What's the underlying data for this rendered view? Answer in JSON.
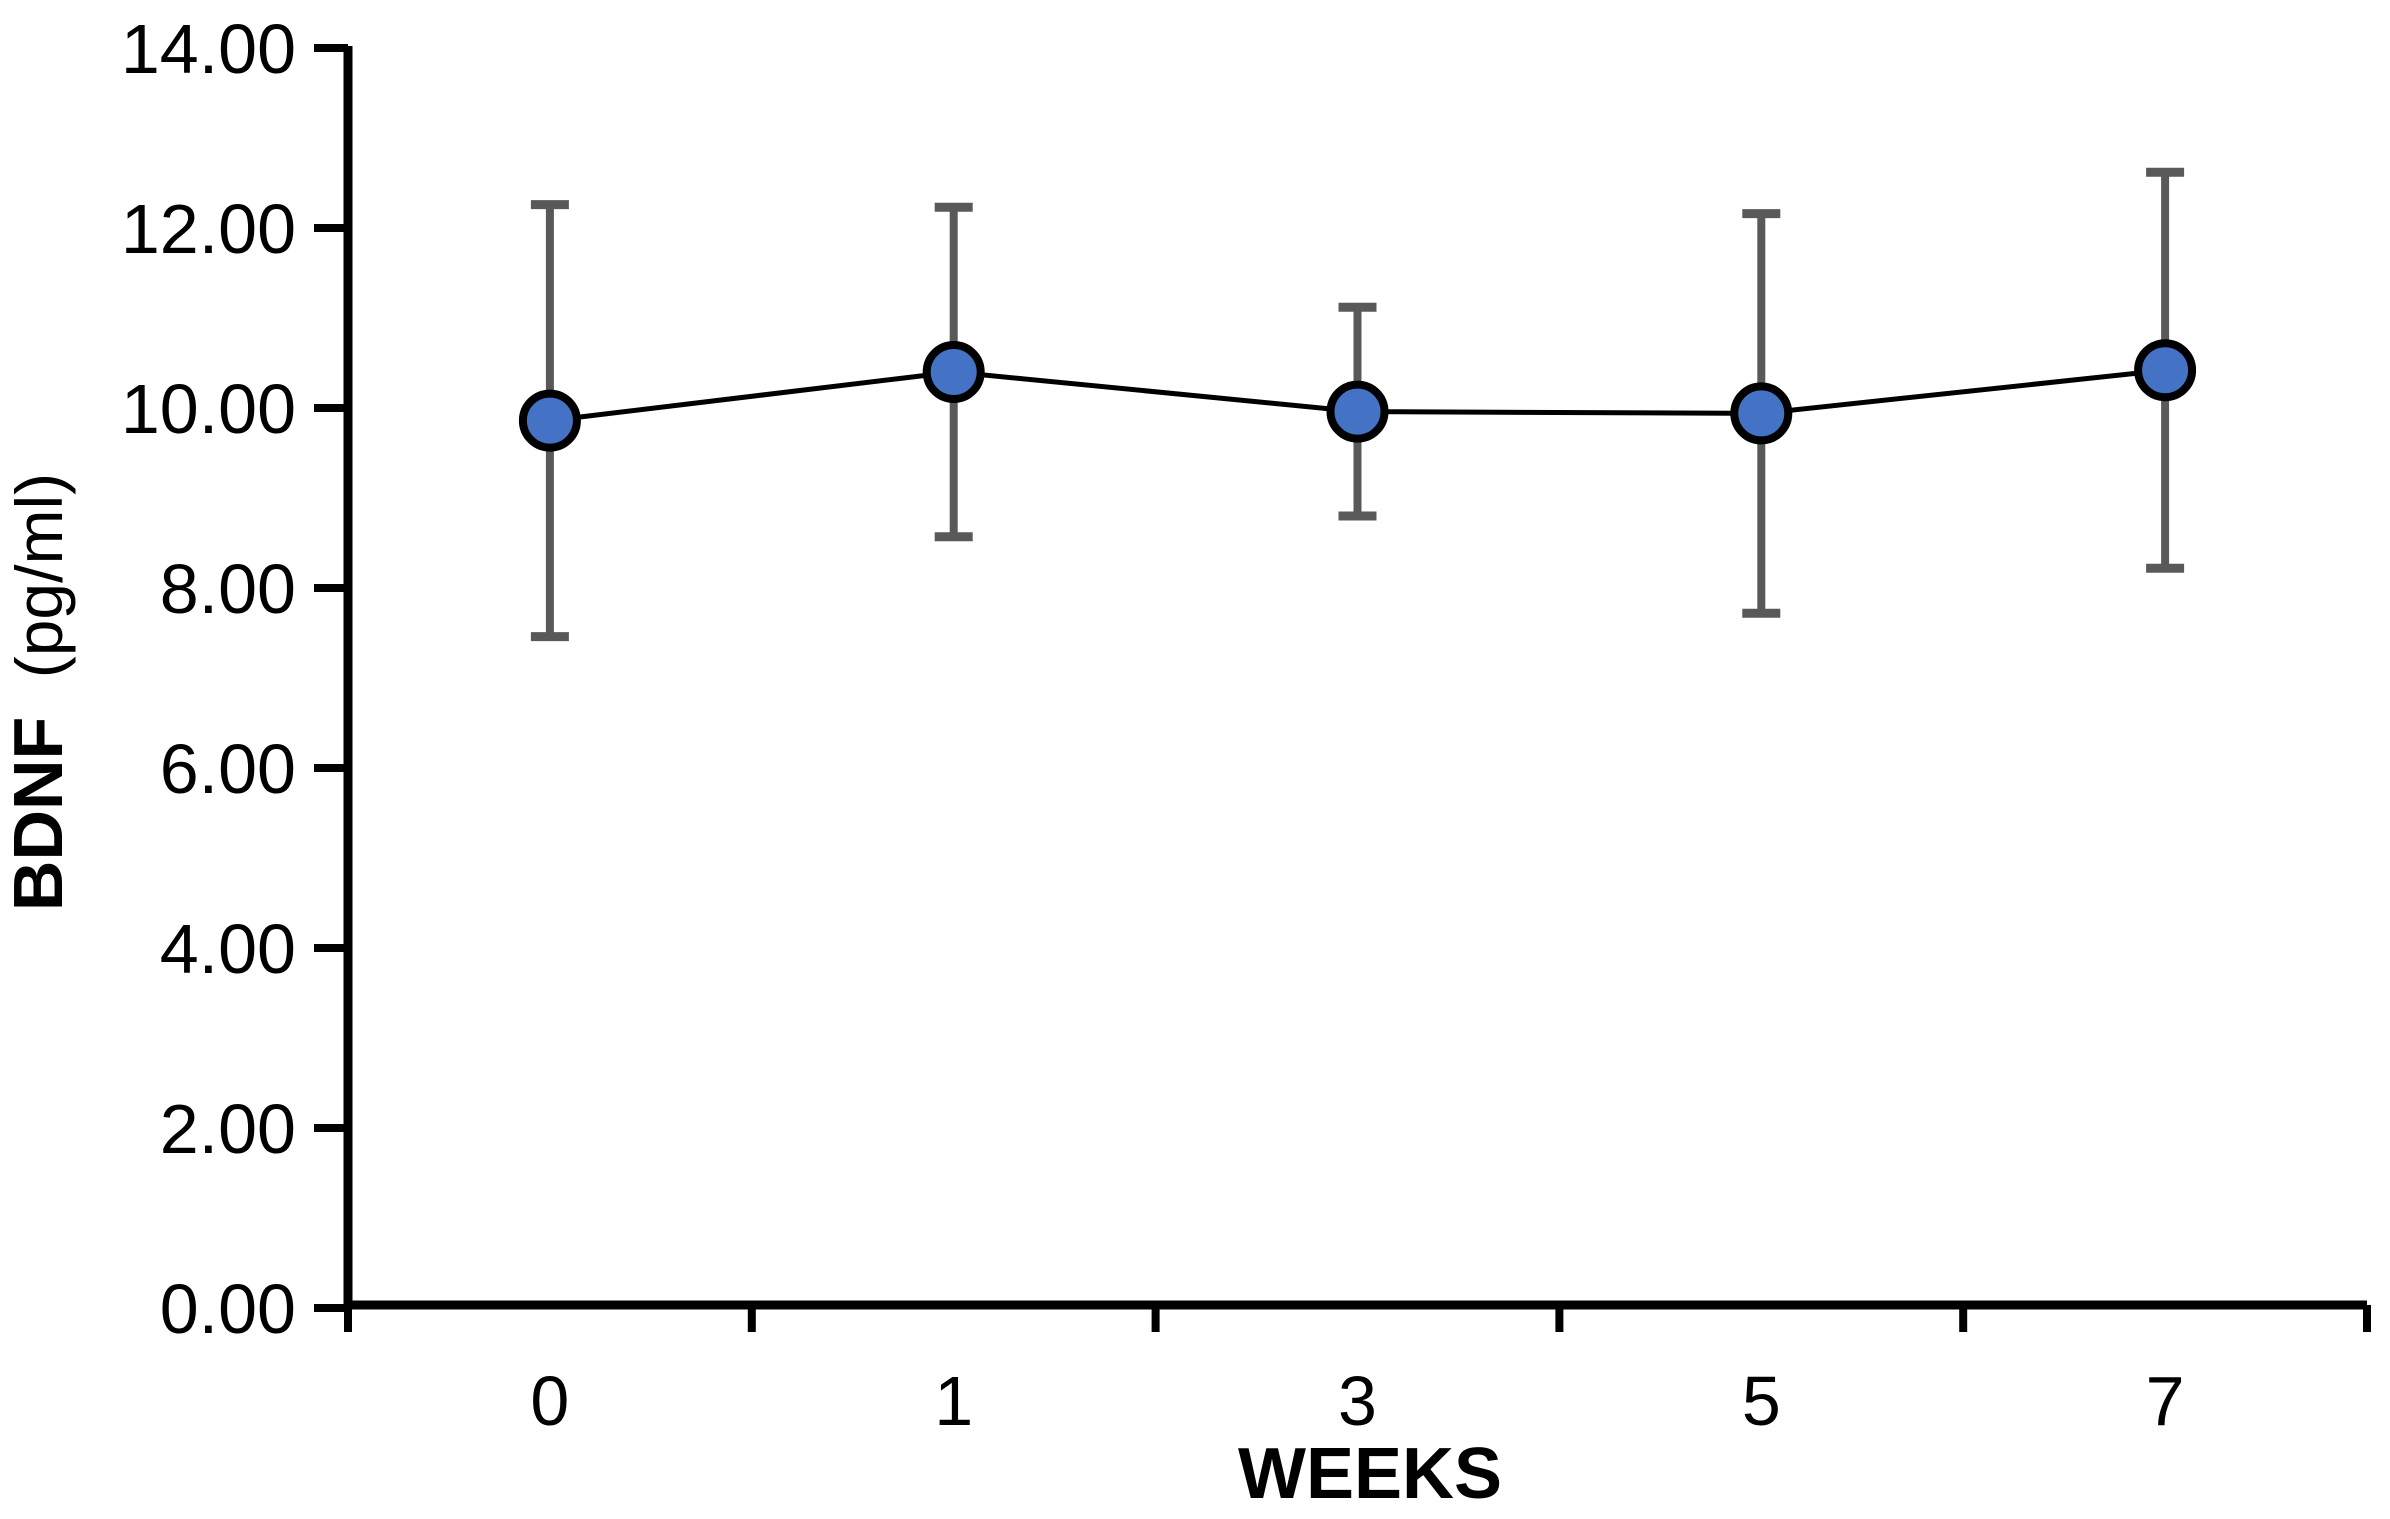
{
  "figure": {
    "background": "#ffffff"
  },
  "chart_data": {
    "type": "line",
    "title": "",
    "xlabel": "WEEKS",
    "ylabel": "BDNF (pg/ml)",
    "ylabel_main": "BDNF",
    "ylabel_unit": "(pg/ml)",
    "categories": [
      "0",
      "1",
      "3",
      "5",
      "7"
    ],
    "series": [
      {
        "name": "BDNF",
        "values": [
          9.86,
          10.4,
          9.96,
          9.94,
          10.42
        ],
        "error_bars": [
          2.4,
          1.83,
          1.16,
          2.22,
          2.2
        ]
      }
    ],
    "ylim": [
      0,
      14
    ],
    "ytick_step": 2,
    "ytick_labels": [
      "0.00",
      "2.00",
      "4.00",
      "6.00",
      "8.00",
      "10.00",
      "12.00",
      "14.00"
    ],
    "grid": false,
    "legend_position": "none",
    "marker_shape": "circle",
    "colors": {
      "marker_fill": "#4472C4",
      "marker_border": "#000000",
      "series_line": "#000000",
      "error_bar": "#595959",
      "axis": "#000000",
      "text": "#000000"
    }
  }
}
